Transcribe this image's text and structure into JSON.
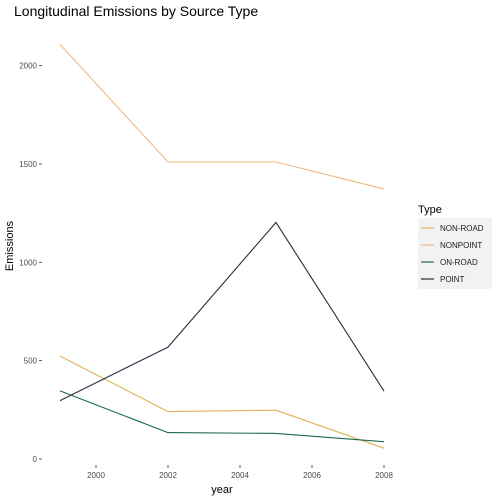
{
  "chart_data": {
    "type": "line",
    "title": "Longitudinal Emissions by Source Type",
    "xlabel": "year",
    "ylabel": "Emissions",
    "xlim": [
      1999,
      2008
    ],
    "ylim": [
      0,
      2110
    ],
    "x_ticks": [
      2000,
      2002,
      2004,
      2006,
      2008
    ],
    "y_ticks": [
      0,
      500,
      1000,
      1500,
      2000
    ],
    "grid": false,
    "legend": {
      "title": "Type",
      "position": "right"
    },
    "x": [
      1999,
      2002,
      2005,
      2008
    ],
    "series": [
      {
        "name": "NON-ROAD",
        "color": "#e0b25a",
        "values": [
          523,
          241,
          248,
          55
        ]
      },
      {
        "name": "NONPOINT",
        "color": "#f0b884",
        "values": [
          2108,
          1510,
          1510,
          1373
        ]
      },
      {
        "name": "ON-ROAD",
        "color": "#1b6b4c",
        "values": [
          346,
          134,
          130,
          88
        ]
      },
      {
        "name": "POINT",
        "color": "#2b2a40",
        "values": [
          297,
          569,
          1203,
          345
        ]
      }
    ]
  }
}
